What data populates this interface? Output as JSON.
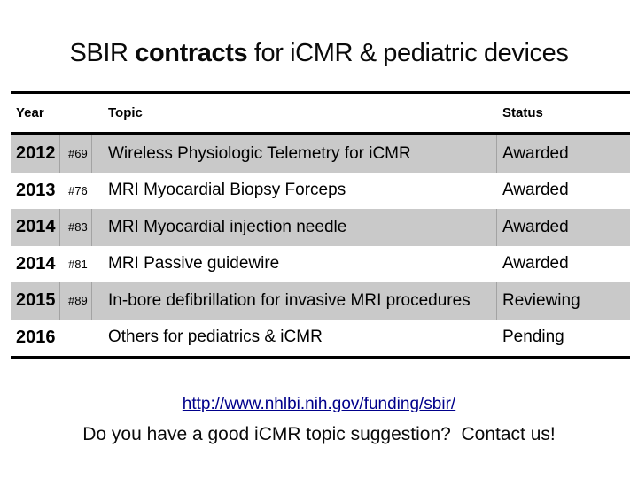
{
  "slide": {
    "title": {
      "prefix": "SBIR ",
      "bold": "contracts",
      "suffix": " for iCMR & pediatric devices"
    },
    "table": {
      "headers": [
        "Year",
        "Topic",
        "Status"
      ],
      "rows": [
        {
          "year": "2012",
          "num": "#69",
          "topic": "Wireless Physiologic Telemetry for iCMR",
          "status": "Awarded",
          "shaded": true
        },
        {
          "year": "2013",
          "num": "#76",
          "topic": "MRI Myocardial Biopsy Forceps",
          "status": "Awarded",
          "shaded": false
        },
        {
          "year": "2014",
          "num": "#83",
          "topic": "MRI Myocardial injection needle",
          "status": "Awarded",
          "shaded": true
        },
        {
          "year": "2014",
          "num": "#81",
          "topic": "MRI Passive guidewire",
          "status": "Awarded",
          "shaded": false
        },
        {
          "year": "2015",
          "num": "#89",
          "topic": "In-bore defibrillation for invasive MRI procedures",
          "status": "Reviewing",
          "shaded": true
        },
        {
          "year": "2016",
          "num": "",
          "topic": "Others for pediatrics & iCMR",
          "status": "Pending",
          "shaded": false
        }
      ]
    },
    "footer": {
      "link": "http://www.nhlbi.nih.gov/funding/sbir/",
      "cta": "Do you have a good iCMR topic suggestion?  Contact us!"
    },
    "colors": {
      "shaded_row": "#c9c9c9",
      "cell_separator": "#a3a3a3",
      "table_border": "#000000",
      "link": "#00008b",
      "text": "#000000"
    }
  }
}
